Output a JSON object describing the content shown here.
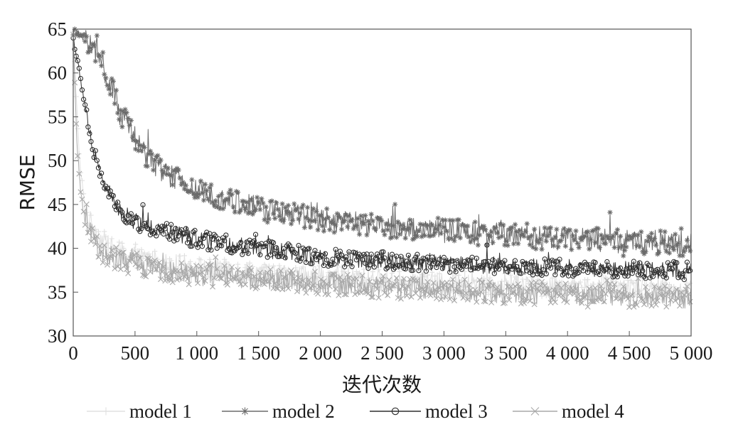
{
  "chart_data": {
    "type": "line",
    "title": "",
    "xlabel": "迭代次数",
    "ylabel": "RMSE",
    "xlim": [
      0,
      5000
    ],
    "ylim": [
      30,
      65
    ],
    "x_ticks": [
      0,
      500,
      1000,
      1500,
      2000,
      2500,
      3000,
      3500,
      4000,
      4500,
      5000
    ],
    "x_tick_labels": [
      "0",
      "500",
      "1 000",
      "1 500",
      "2 000",
      "2 500",
      "3 000",
      "3 500",
      "4 000",
      "4 500",
      "5 000"
    ],
    "y_ticks": [
      30,
      35,
      40,
      45,
      50,
      55,
      60,
      65
    ],
    "y_tick_labels": [
      "30",
      "35",
      "40",
      "45",
      "50",
      "55",
      "60",
      "65"
    ],
    "grid": false,
    "legend_position": "bottom",
    "series": [
      {
        "name": "model 1",
        "color": "#e0e0e0",
        "marker": "plus",
        "noise": 1.2,
        "x": [
          0,
          50,
          100,
          200,
          300,
          500,
          750,
          1000,
          1500,
          2000,
          2500,
          3000,
          3500,
          4000,
          4500,
          5000
        ],
        "values": [
          64.5,
          50.0,
          44.0,
          41.5,
          40.0,
          39.0,
          38.3,
          37.8,
          37.2,
          36.8,
          36.4,
          36.0,
          35.8,
          35.6,
          35.4,
          35.2
        ]
      },
      {
        "name": "model 2",
        "color": "#6b6b6b",
        "marker": "star",
        "noise": 1.4,
        "x": [
          0,
          100,
          200,
          300,
          400,
          500,
          600,
          750,
          1000,
          1250,
          1500,
          2000,
          2500,
          3000,
          3500,
          4000,
          4500,
          5000
        ],
        "values": [
          64.8,
          64.0,
          62.0,
          58.5,
          55.0,
          52.5,
          50.5,
          48.5,
          46.5,
          45.5,
          44.5,
          43.3,
          42.5,
          42.0,
          41.5,
          41.1,
          40.8,
          40.5
        ]
      },
      {
        "name": "model 3",
        "color": "#2f2f2f",
        "marker": "circle",
        "noise": 1.0,
        "x": [
          0,
          50,
          100,
          150,
          200,
          300,
          400,
          500,
          750,
          1000,
          1500,
          2000,
          2500,
          3000,
          3500,
          4000,
          4500,
          5000
        ],
        "values": [
          64.0,
          60.0,
          56.0,
          52.0,
          49.0,
          46.0,
          44.0,
          43.0,
          42.0,
          41.0,
          40.0,
          39.0,
          38.6,
          38.3,
          38.0,
          37.8,
          37.6,
          37.5
        ]
      },
      {
        "name": "model 4",
        "color": "#a8a8a8",
        "marker": "cross",
        "noise": 1.3,
        "x": [
          0,
          30,
          60,
          100,
          200,
          300,
          500,
          750,
          1000,
          1500,
          2000,
          2500,
          3000,
          3500,
          4000,
          4500,
          5000
        ],
        "values": [
          64.0,
          52.0,
          46.0,
          43.0,
          40.0,
          39.0,
          38.2,
          37.5,
          37.0,
          36.5,
          36.0,
          35.6,
          35.3,
          35.0,
          34.8,
          34.6,
          34.4
        ]
      }
    ]
  }
}
